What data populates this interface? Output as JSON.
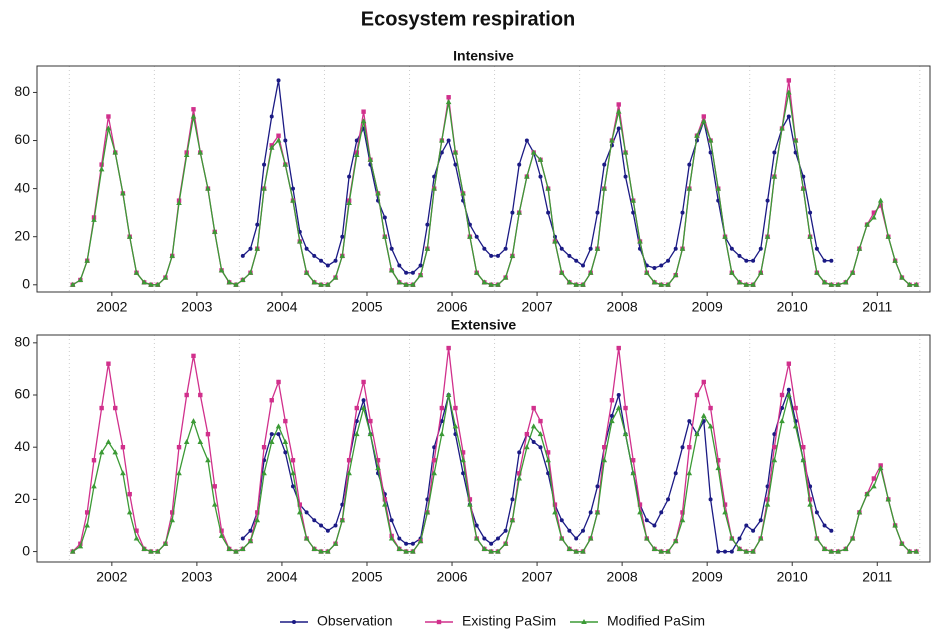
{
  "title": "Ecosystem respiration",
  "chart_data": [
    {
      "type": "line",
      "title": "Intensive",
      "x": [
        2002.04,
        2002.13,
        2002.21,
        2002.29,
        2002.38,
        2002.46,
        2002.54,
        2002.63,
        2002.71,
        2002.79,
        2002.88,
        2002.96,
        2003.04,
        2003.13,
        2003.21,
        2003.29,
        2003.38,
        2003.46,
        2003.54,
        2003.63,
        2003.71,
        2003.79,
        2003.88,
        2003.96,
        2004.04,
        2004.13,
        2004.21,
        2004.29,
        2004.38,
        2004.46,
        2004.54,
        2004.63,
        2004.71,
        2004.79,
        2004.88,
        2004.96,
        2005.04,
        2005.13,
        2005.21,
        2005.29,
        2005.38,
        2005.46,
        2005.54,
        2005.63,
        2005.71,
        2005.79,
        2005.88,
        2005.96,
        2006.04,
        2006.13,
        2006.21,
        2006.29,
        2006.38,
        2006.46,
        2006.54,
        2006.63,
        2006.71,
        2006.79,
        2006.88,
        2006.96,
        2007.04,
        2007.13,
        2007.21,
        2007.29,
        2007.38,
        2007.46,
        2007.54,
        2007.63,
        2007.71,
        2007.79,
        2007.88,
        2007.96,
        2008.04,
        2008.13,
        2008.21,
        2008.29,
        2008.38,
        2008.46,
        2008.54,
        2008.63,
        2008.71,
        2008.79,
        2008.88,
        2008.96,
        2009.04,
        2009.13,
        2009.21,
        2009.29,
        2009.38,
        2009.46,
        2009.54,
        2009.63,
        2009.71,
        2009.79,
        2009.88,
        2009.96,
        2010.04,
        2010.13,
        2010.21,
        2010.29,
        2010.38,
        2010.46,
        2010.54,
        2010.63,
        2010.71,
        2010.79,
        2010.88,
        2010.96,
        2011.04,
        2011.13,
        2011.21,
        2011.29,
        2011.38,
        2011.46,
        2011.54,
        2011.63,
        2011.71,
        2011.79,
        2011.88,
        2011.96
      ],
      "series": [
        {
          "name": "Observation",
          "color": "#1b1a84",
          "marker": "circle",
          "values": [
            null,
            null,
            null,
            null,
            null,
            null,
            null,
            null,
            null,
            null,
            null,
            null,
            null,
            null,
            null,
            null,
            null,
            null,
            null,
            null,
            null,
            null,
            null,
            null,
            12,
            15,
            25,
            50,
            70,
            85,
            60,
            40,
            22,
            15,
            12,
            10,
            8,
            10,
            20,
            45,
            60,
            65,
            50,
            35,
            28,
            15,
            8,
            5,
            5,
            8,
            25,
            45,
            55,
            60,
            50,
            35,
            25,
            20,
            15,
            12,
            12,
            15,
            30,
            50,
            60,
            55,
            45,
            30,
            20,
            15,
            12,
            10,
            8,
            15,
            30,
            50,
            58,
            65,
            45,
            30,
            15,
            8,
            7,
            8,
            10,
            15,
            30,
            50,
            60,
            68,
            55,
            35,
            20,
            15,
            12,
            10,
            10,
            15,
            35,
            55,
            65,
            70,
            55,
            45,
            30,
            15,
            10,
            10,
            null,
            null,
            null,
            null,
            null,
            null,
            null,
            null,
            null,
            null,
            null,
            null
          ]
        },
        {
          "name": "Existing PaSim",
          "color": "#d1308c",
          "marker": "square",
          "values": [
            0,
            2,
            10,
            28,
            50,
            70,
            55,
            38,
            20,
            5,
            1,
            0,
            0,
            3,
            12,
            35,
            55,
            73,
            55,
            40,
            22,
            6,
            1,
            0,
            2,
            5,
            15,
            40,
            58,
            62,
            50,
            35,
            18,
            5,
            1,
            0,
            0,
            3,
            12,
            35,
            55,
            72,
            52,
            38,
            20,
            6,
            1,
            0,
            0,
            4,
            15,
            40,
            60,
            78,
            55,
            38,
            20,
            5,
            1,
            0,
            0,
            3,
            12,
            30,
            45,
            55,
            52,
            40,
            18,
            5,
            1,
            0,
            0,
            5,
            15,
            40,
            60,
            75,
            55,
            35,
            18,
            5,
            1,
            0,
            0,
            4,
            15,
            40,
            62,
            70,
            60,
            40,
            20,
            5,
            1,
            0,
            0,
            5,
            20,
            45,
            65,
            85,
            60,
            40,
            20,
            5,
            1,
            0,
            0,
            1,
            5,
            15,
            25,
            30,
            33,
            20,
            10,
            3,
            0,
            0
          ]
        },
        {
          "name": "Modified PaSim",
          "color": "#3b9a35",
          "marker": "triangle",
          "values": [
            0,
            2,
            10,
            27,
            48,
            65,
            55,
            38,
            20,
            5,
            1,
            0,
            0,
            3,
            12,
            34,
            54,
            70,
            55,
            40,
            22,
            6,
            1,
            0,
            2,
            5,
            15,
            40,
            57,
            60,
            50,
            35,
            18,
            5,
            1,
            0,
            0,
            3,
            12,
            34,
            54,
            68,
            52,
            38,
            20,
            6,
            1,
            0,
            0,
            4,
            15,
            40,
            60,
            76,
            55,
            38,
            20,
            5,
            1,
            0,
            0,
            3,
            12,
            30,
            45,
            55,
            52,
            40,
            18,
            5,
            1,
            0,
            0,
            5,
            15,
            40,
            60,
            72,
            55,
            35,
            18,
            5,
            1,
            0,
            0,
            4,
            15,
            40,
            62,
            68,
            60,
            40,
            20,
            5,
            1,
            0,
            0,
            5,
            20,
            45,
            65,
            80,
            60,
            40,
            20,
            5,
            1,
            0,
            0,
            1,
            5,
            15,
            25,
            28,
            35,
            20,
            10,
            3,
            0,
            0
          ]
        }
      ],
      "xlim": [
        2001.62,
        2012.12
      ],
      "xticks": [
        {
          "value": 2002.5,
          "label": "2002"
        },
        {
          "value": 2003.5,
          "label": "2003"
        },
        {
          "value": 2004.5,
          "label": "2004"
        },
        {
          "value": 2005.5,
          "label": "2005"
        },
        {
          "value": 2006.5,
          "label": "2006"
        },
        {
          "value": 2007.5,
          "label": "2007"
        },
        {
          "value": 2008.5,
          "label": "2008"
        },
        {
          "value": 2009.5,
          "label": "2009"
        },
        {
          "value": 2010.5,
          "label": "2010"
        },
        {
          "value": 2011.5,
          "label": "2011"
        }
      ],
      "xgrid": [
        2002,
        2003,
        2004,
        2005,
        2006,
        2007,
        2008,
        2009,
        2010,
        2011,
        2012
      ],
      "ylim": [
        -3,
        91
      ],
      "yticks": [
        0,
        20,
        40,
        60,
        80
      ]
    },
    {
      "type": "line",
      "title": "Extensive",
      "x": [
        2002.04,
        2002.13,
        2002.21,
        2002.29,
        2002.38,
        2002.46,
        2002.54,
        2002.63,
        2002.71,
        2002.79,
        2002.88,
        2002.96,
        2003.04,
        2003.13,
        2003.21,
        2003.29,
        2003.38,
        2003.46,
        2003.54,
        2003.63,
        2003.71,
        2003.79,
        2003.88,
        2003.96,
        2004.04,
        2004.13,
        2004.21,
        2004.29,
        2004.38,
        2004.46,
        2004.54,
        2004.63,
        2004.71,
        2004.79,
        2004.88,
        2004.96,
        2005.04,
        2005.13,
        2005.21,
        2005.29,
        2005.38,
        2005.46,
        2005.54,
        2005.63,
        2005.71,
        2005.79,
        2005.88,
        2005.96,
        2006.04,
        2006.13,
        2006.21,
        2006.29,
        2006.38,
        2006.46,
        2006.54,
        2006.63,
        2006.71,
        2006.79,
        2006.88,
        2006.96,
        2007.04,
        2007.13,
        2007.21,
        2007.29,
        2007.38,
        2007.46,
        2007.54,
        2007.63,
        2007.71,
        2007.79,
        2007.88,
        2007.96,
        2008.04,
        2008.13,
        2008.21,
        2008.29,
        2008.38,
        2008.46,
        2008.54,
        2008.63,
        2008.71,
        2008.79,
        2008.88,
        2008.96,
        2009.04,
        2009.13,
        2009.21,
        2009.29,
        2009.38,
        2009.46,
        2009.54,
        2009.63,
        2009.71,
        2009.79,
        2009.88,
        2009.96,
        2010.04,
        2010.13,
        2010.21,
        2010.29,
        2010.38,
        2010.46,
        2010.54,
        2010.63,
        2010.71,
        2010.79,
        2010.88,
        2010.96,
        2011.04,
        2011.13,
        2011.21,
        2011.29,
        2011.38,
        2011.46,
        2011.54,
        2011.63,
        2011.71,
        2011.79,
        2011.88,
        2011.96
      ],
      "series": [
        {
          "name": "Observation",
          "color": "#1b1a84",
          "marker": "circle",
          "values": [
            null,
            null,
            null,
            null,
            null,
            null,
            null,
            null,
            null,
            null,
            null,
            null,
            null,
            null,
            null,
            null,
            null,
            null,
            null,
            null,
            null,
            null,
            null,
            null,
            5,
            8,
            15,
            35,
            45,
            45,
            38,
            25,
            18,
            15,
            12,
            10,
            8,
            10,
            18,
            35,
            50,
            58,
            45,
            30,
            22,
            12,
            5,
            3,
            3,
            5,
            20,
            40,
            50,
            60,
            45,
            30,
            18,
            10,
            5,
            3,
            5,
            8,
            20,
            38,
            45,
            42,
            40,
            30,
            18,
            12,
            8,
            5,
            8,
            15,
            25,
            40,
            52,
            60,
            45,
            30,
            18,
            12,
            10,
            15,
            20,
            30,
            40,
            50,
            45,
            50,
            20,
            0,
            0,
            0,
            5,
            10,
            8,
            12,
            25,
            45,
            55,
            62,
            50,
            35,
            25,
            15,
            10,
            8,
            null,
            null,
            null,
            null,
            null,
            null,
            null,
            null,
            null,
            null,
            null,
            null
          ]
        },
        {
          "name": "Existing PaSim",
          "color": "#d1308c",
          "marker": "square",
          "values": [
            0,
            3,
            15,
            35,
            55,
            72,
            55,
            40,
            22,
            8,
            1,
            0,
            0,
            3,
            15,
            40,
            60,
            75,
            60,
            45,
            25,
            8,
            1,
            0,
            1,
            4,
            15,
            40,
            58,
            65,
            50,
            35,
            18,
            5,
            1,
            0,
            0,
            3,
            12,
            35,
            55,
            65,
            50,
            35,
            20,
            6,
            1,
            0,
            0,
            4,
            15,
            35,
            55,
            78,
            55,
            38,
            20,
            5,
            1,
            0,
            0,
            3,
            12,
            30,
            45,
            55,
            50,
            38,
            18,
            5,
            1,
            0,
            0,
            5,
            15,
            40,
            58,
            78,
            55,
            35,
            18,
            5,
            1,
            0,
            0,
            4,
            15,
            40,
            60,
            65,
            55,
            35,
            18,
            5,
            1,
            0,
            0,
            5,
            20,
            40,
            60,
            72,
            55,
            40,
            20,
            5,
            1,
            0,
            0,
            1,
            5,
            15,
            22,
            28,
            33,
            20,
            10,
            3,
            0,
            0
          ]
        },
        {
          "name": "Modified PaSim",
          "color": "#3b9a35",
          "marker": "triangle",
          "values": [
            0,
            2,
            10,
            25,
            38,
            42,
            38,
            30,
            15,
            5,
            1,
            0,
            0,
            3,
            12,
            30,
            42,
            50,
            42,
            35,
            18,
            6,
            1,
            0,
            1,
            4,
            12,
            30,
            42,
            48,
            42,
            30,
            15,
            5,
            1,
            0,
            0,
            3,
            12,
            30,
            45,
            55,
            45,
            32,
            18,
            5,
            1,
            0,
            0,
            4,
            15,
            30,
            45,
            60,
            48,
            35,
            18,
            5,
            1,
            0,
            0,
            3,
            12,
            28,
            40,
            48,
            45,
            35,
            15,
            5,
            1,
            0,
            0,
            5,
            15,
            35,
            50,
            55,
            45,
            30,
            15,
            5,
            1,
            0,
            0,
            4,
            12,
            30,
            45,
            52,
            48,
            32,
            15,
            5,
            1,
            0,
            0,
            5,
            18,
            35,
            50,
            60,
            48,
            35,
            18,
            5,
            1,
            0,
            0,
            1,
            5,
            15,
            22,
            25,
            32,
            20,
            10,
            3,
            0,
            0
          ]
        }
      ],
      "xlim": [
        2001.62,
        2012.12
      ],
      "xticks": [
        {
          "value": 2002.5,
          "label": "2002"
        },
        {
          "value": 2003.5,
          "label": "2003"
        },
        {
          "value": 2004.5,
          "label": "2004"
        },
        {
          "value": 2005.5,
          "label": "2005"
        },
        {
          "value": 2006.5,
          "label": "2006"
        },
        {
          "value": 2007.5,
          "label": "2007"
        },
        {
          "value": 2008.5,
          "label": "2008"
        },
        {
          "value": 2009.5,
          "label": "2009"
        },
        {
          "value": 2010.5,
          "label": "2010"
        },
        {
          "value": 2011.5,
          "label": "2011"
        }
      ],
      "xgrid": [
        2002,
        2003,
        2004,
        2005,
        2006,
        2007,
        2008,
        2009,
        2010,
        2011,
        2012
      ],
      "ylim": [
        -4,
        83
      ],
      "yticks": [
        0,
        20,
        40,
        60,
        80
      ]
    }
  ]
}
